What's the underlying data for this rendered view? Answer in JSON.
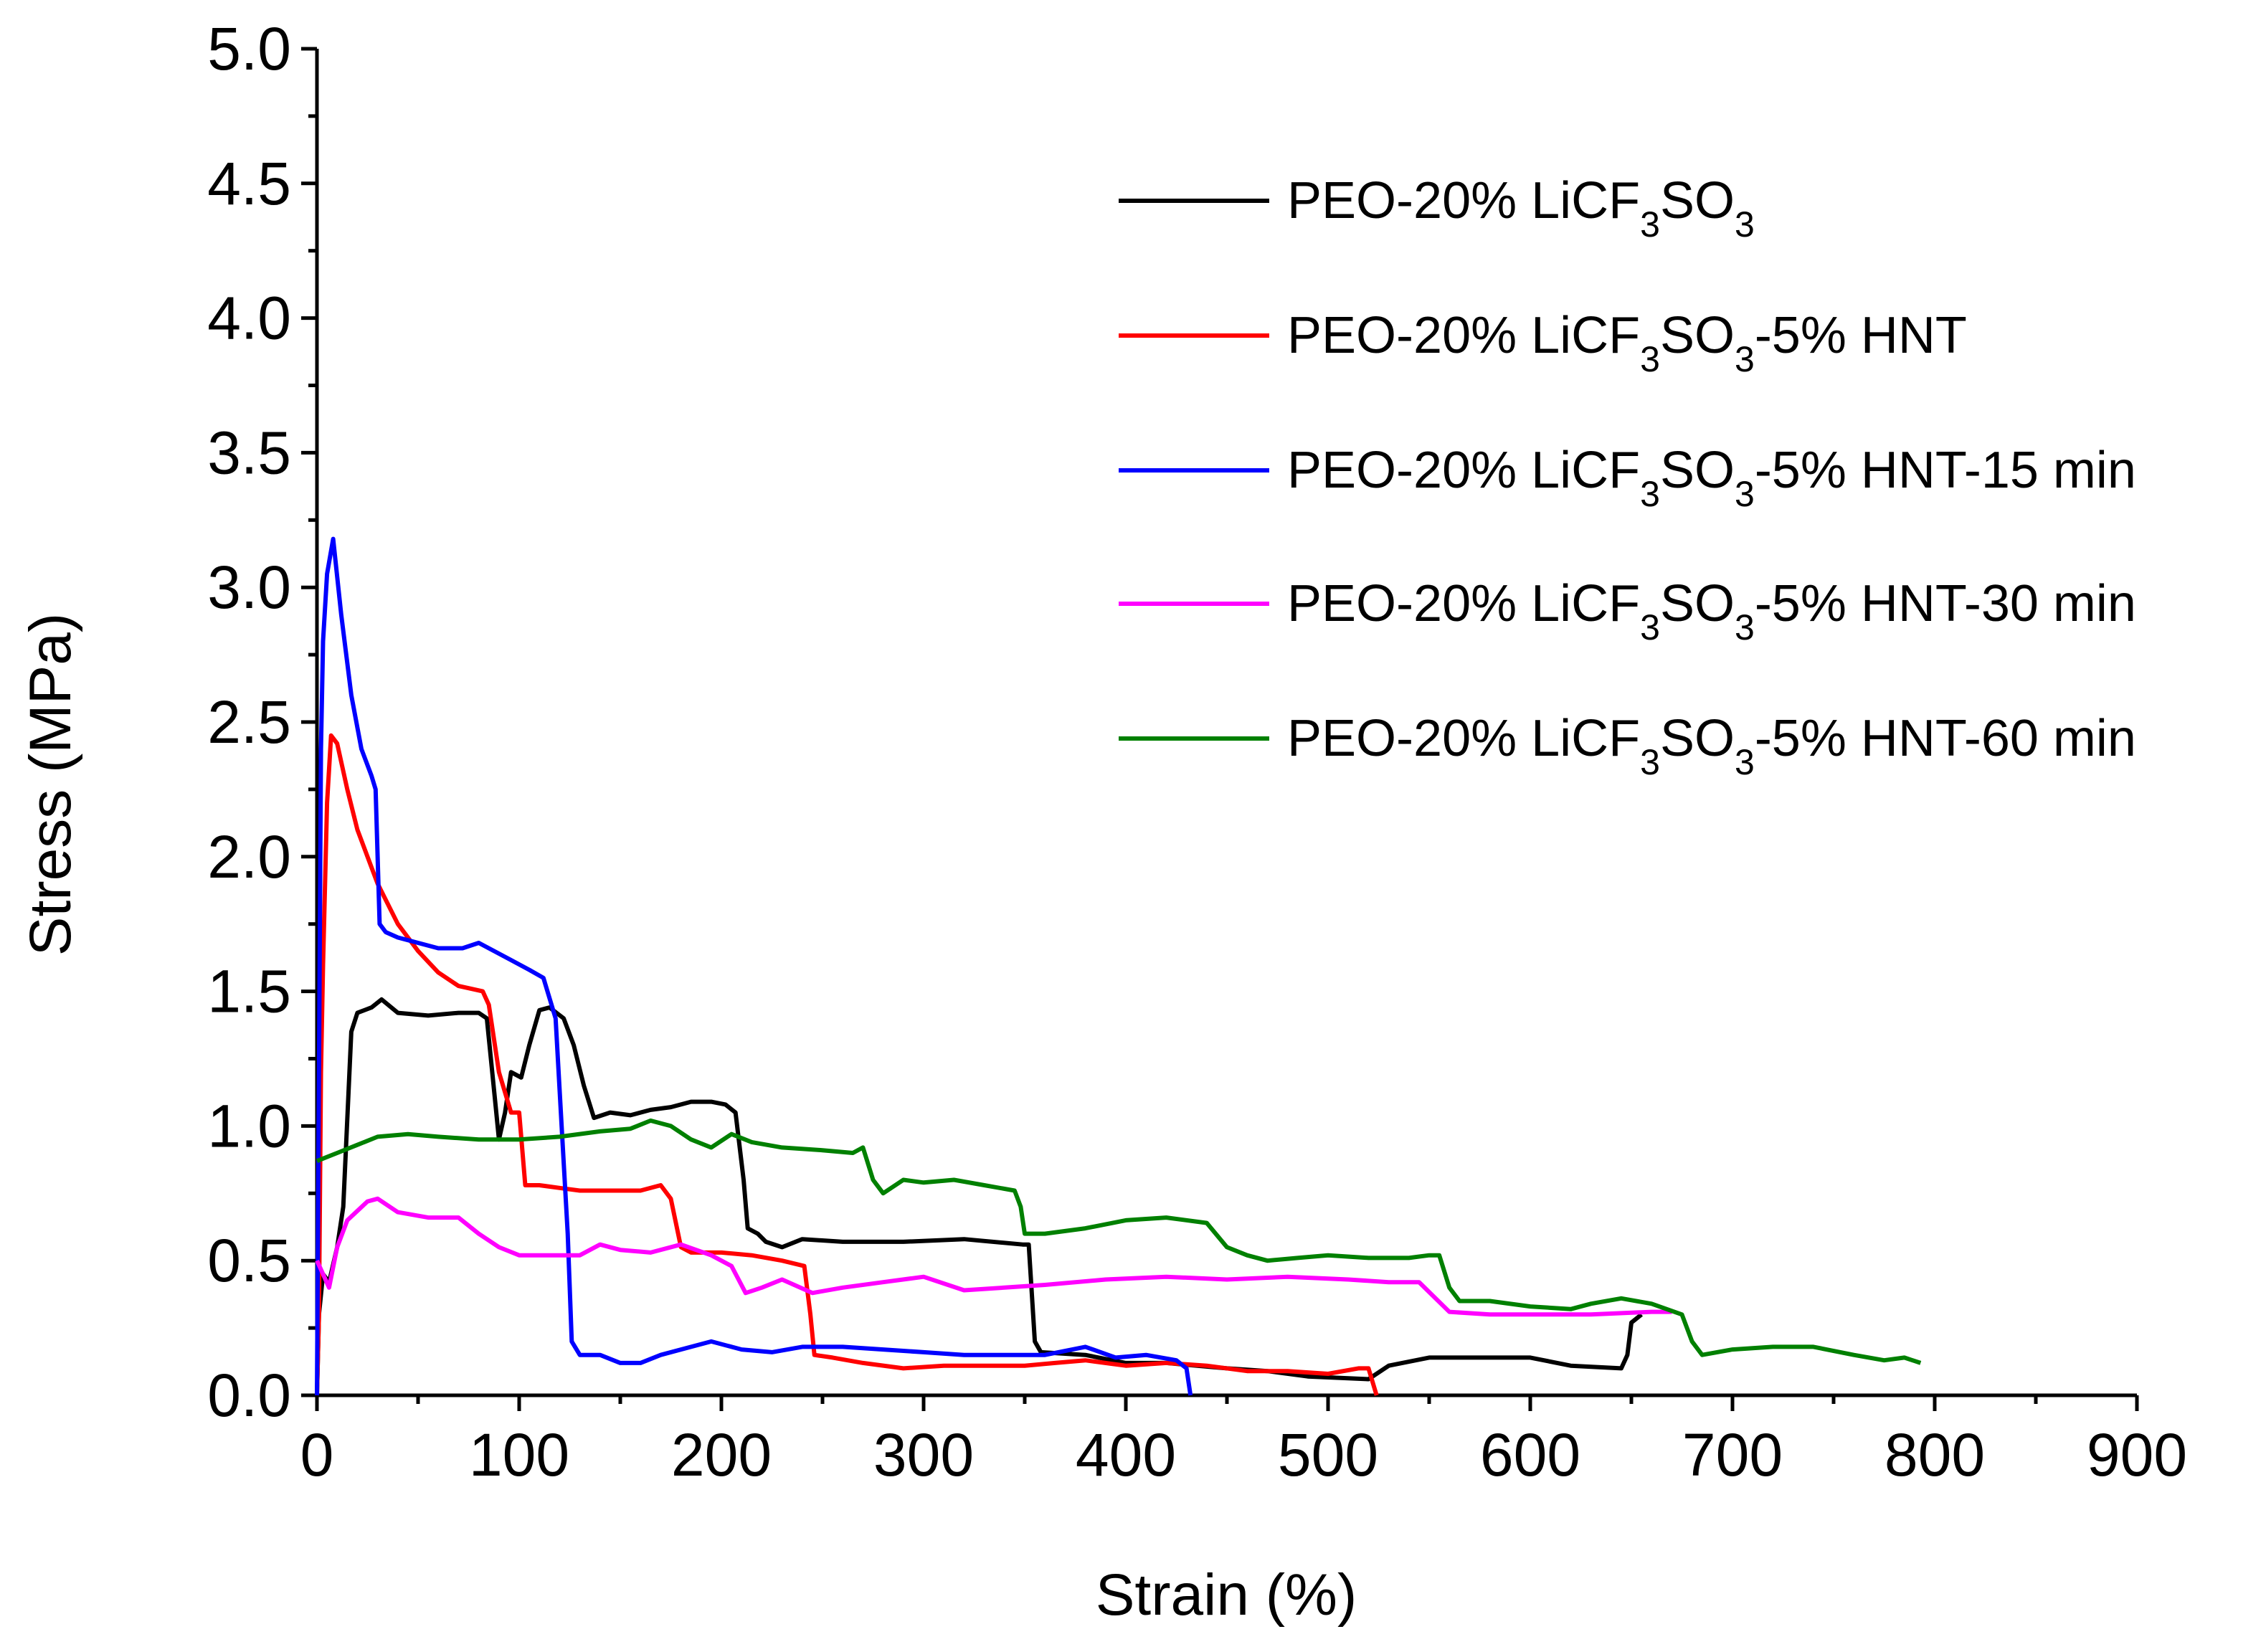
{
  "chart_data": {
    "type": "line",
    "title": "",
    "xlabel": "Strain (%)",
    "ylabel": "Stress (MPa)",
    "xlim": [
      0,
      900
    ],
    "ylim": [
      0,
      5.0
    ],
    "xticks": [
      "0",
      "100",
      "200",
      "300",
      "400",
      "500",
      "600",
      "700",
      "800",
      "900"
    ],
    "yticks": [
      "0.0",
      "0.5",
      "1.0",
      "1.5",
      "2.0",
      "2.5",
      "3.0",
      "3.5",
      "4.0",
      "4.5",
      "5.0"
    ],
    "grid": false,
    "legend_position": "top-right",
    "series": [
      {
        "name": "PEO-20% LiCF3SO3",
        "label_parts": [
          [
            "PEO-20% LiCF",
            "3",
            "SO",
            "3",
            ""
          ]
        ],
        "color": "#000000",
        "points": [
          [
            0,
            0
          ],
          [
            1,
            0.3
          ],
          [
            3,
            0.45
          ],
          [
            6,
            0.42
          ],
          [
            10,
            0.55
          ],
          [
            13,
            0.7
          ],
          [
            17,
            1.35
          ],
          [
            20,
            1.42
          ],
          [
            27,
            1.44
          ],
          [
            32,
            1.47
          ],
          [
            40,
            1.42
          ],
          [
            55,
            1.41
          ],
          [
            70,
            1.42
          ],
          [
            80,
            1.42
          ],
          [
            84,
            1.4
          ],
          [
            88,
            1.1
          ],
          [
            90,
            0.95
          ],
          [
            93,
            1.05
          ],
          [
            96,
            1.2
          ],
          [
            101,
            1.18
          ],
          [
            105,
            1.3
          ],
          [
            110,
            1.43
          ],
          [
            115,
            1.44
          ],
          [
            122,
            1.4
          ],
          [
            127,
            1.3
          ],
          [
            132,
            1.15
          ],
          [
            137,
            1.03
          ],
          [
            145,
            1.05
          ],
          [
            155,
            1.04
          ],
          [
            165,
            1.06
          ],
          [
            175,
            1.07
          ],
          [
            185,
            1.09
          ],
          [
            195,
            1.09
          ],
          [
            202,
            1.08
          ],
          [
            207,
            1.05
          ],
          [
            211,
            0.8
          ],
          [
            213,
            0.62
          ],
          [
            218,
            0.6
          ],
          [
            222,
            0.57
          ],
          [
            230,
            0.55
          ],
          [
            240,
            0.58
          ],
          [
            260,
            0.57
          ],
          [
            290,
            0.57
          ],
          [
            320,
            0.58
          ],
          [
            349,
            0.56
          ],
          [
            352,
            0.56
          ],
          [
            355,
            0.2
          ],
          [
            358,
            0.16
          ],
          [
            380,
            0.15
          ],
          [
            400,
            0.12
          ],
          [
            420,
            0.12
          ],
          [
            450,
            0.1
          ],
          [
            470,
            0.09
          ],
          [
            490,
            0.07
          ],
          [
            520,
            0.06
          ],
          [
            530,
            0.11
          ],
          [
            550,
            0.14
          ],
          [
            580,
            0.14
          ],
          [
            600,
            0.14
          ],
          [
            620,
            0.11
          ],
          [
            645,
            0.1
          ],
          [
            648,
            0.15
          ],
          [
            650,
            0.27
          ],
          [
            655,
            0.3
          ]
        ]
      },
      {
        "name": "PEO-20% LiCF3SO3-5% HNT",
        "label_parts": [
          [
            "PEO-20% LiCF",
            "3",
            "SO",
            "3",
            "-5% HNT"
          ]
        ],
        "color": "#ff0000",
        "points": [
          [
            0,
            0
          ],
          [
            1,
            0.3
          ],
          [
            2,
            1.2
          ],
          [
            3,
            1.6
          ],
          [
            5,
            2.2
          ],
          [
            7,
            2.45
          ],
          [
            10,
            2.42
          ],
          [
            15,
            2.25
          ],
          [
            20,
            2.1
          ],
          [
            30,
            1.9
          ],
          [
            40,
            1.75
          ],
          [
            50,
            1.65
          ],
          [
            60,
            1.57
          ],
          [
            70,
            1.52
          ],
          [
            82,
            1.5
          ],
          [
            85,
            1.45
          ],
          [
            90,
            1.2
          ],
          [
            96,
            1.05
          ],
          [
            100,
            1.05
          ],
          [
            103,
            0.78
          ],
          [
            110,
            0.78
          ],
          [
            120,
            0.77
          ],
          [
            130,
            0.76
          ],
          [
            145,
            0.76
          ],
          [
            160,
            0.76
          ],
          [
            170,
            0.78
          ],
          [
            175,
            0.73
          ],
          [
            180,
            0.55
          ],
          [
            185,
            0.53
          ],
          [
            200,
            0.53
          ],
          [
            215,
            0.52
          ],
          [
            230,
            0.5
          ],
          [
            241,
            0.48
          ],
          [
            244,
            0.3
          ],
          [
            246,
            0.15
          ],
          [
            255,
            0.14
          ],
          [
            270,
            0.12
          ],
          [
            290,
            0.1
          ],
          [
            310,
            0.11
          ],
          [
            330,
            0.11
          ],
          [
            350,
            0.11
          ],
          [
            365,
            0.12
          ],
          [
            380,
            0.13
          ],
          [
            400,
            0.11
          ],
          [
            420,
            0.12
          ],
          [
            440,
            0.11
          ],
          [
            460,
            0.09
          ],
          [
            480,
            0.09
          ],
          [
            500,
            0.08
          ],
          [
            515,
            0.1
          ],
          [
            520,
            0.1
          ],
          [
            524,
            0.0
          ]
        ]
      },
      {
        "name": "PEO-20% LiCF3SO3-5% HNT-15 min",
        "label_parts": [
          [
            "PEO-20% LiCF",
            "3",
            "SO",
            "3",
            "-5% HNT-15 min"
          ]
        ],
        "color": "#0000ff",
        "points": [
          [
            0,
            0
          ],
          [
            1,
            1.2
          ],
          [
            2,
            2.4
          ],
          [
            3,
            2.8
          ],
          [
            5,
            3.05
          ],
          [
            8,
            3.18
          ],
          [
            12,
            2.9
          ],
          [
            17,
            2.6
          ],
          [
            22,
            2.4
          ],
          [
            27,
            2.3
          ],
          [
            29,
            2.25
          ],
          [
            31,
            1.75
          ],
          [
            34,
            1.72
          ],
          [
            40,
            1.7
          ],
          [
            50,
            1.68
          ],
          [
            60,
            1.66
          ],
          [
            72,
            1.66
          ],
          [
            80,
            1.68
          ],
          [
            85,
            1.66
          ],
          [
            95,
            1.62
          ],
          [
            105,
            1.58
          ],
          [
            112,
            1.55
          ],
          [
            118,
            1.4
          ],
          [
            121,
            1.0
          ],
          [
            124,
            0.6
          ],
          [
            126,
            0.2
          ],
          [
            130,
            0.15
          ],
          [
            140,
            0.15
          ],
          [
            150,
            0.12
          ],
          [
            160,
            0.12
          ],
          [
            170,
            0.15
          ],
          [
            185,
            0.18
          ],
          [
            195,
            0.2
          ],
          [
            210,
            0.17
          ],
          [
            225,
            0.16
          ],
          [
            240,
            0.18
          ],
          [
            260,
            0.18
          ],
          [
            280,
            0.17
          ],
          [
            300,
            0.16
          ],
          [
            320,
            0.15
          ],
          [
            340,
            0.15
          ],
          [
            360,
            0.15
          ],
          [
            380,
            0.18
          ],
          [
            395,
            0.14
          ],
          [
            410,
            0.15
          ],
          [
            425,
            0.13
          ],
          [
            430,
            0.1
          ],
          [
            432,
            0.0
          ]
        ]
      },
      {
        "name": "PEO-20% LiCF3SO3-5% HNT-30 min",
        "label_parts": [
          [
            "PEO-20% LiCF",
            "3",
            "SO",
            "3",
            "-5% HNT-30 min"
          ]
        ],
        "color": "#ff00ff",
        "points": [
          [
            0,
            0.5
          ],
          [
            3,
            0.45
          ],
          [
            6,
            0.4
          ],
          [
            10,
            0.55
          ],
          [
            15,
            0.65
          ],
          [
            25,
            0.72
          ],
          [
            30,
            0.73
          ],
          [
            40,
            0.68
          ],
          [
            55,
            0.66
          ],
          [
            70,
            0.66
          ],
          [
            80,
            0.6
          ],
          [
            90,
            0.55
          ],
          [
            100,
            0.52
          ],
          [
            115,
            0.52
          ],
          [
            130,
            0.52
          ],
          [
            140,
            0.56
          ],
          [
            150,
            0.54
          ],
          [
            165,
            0.53
          ],
          [
            180,
            0.56
          ],
          [
            195,
            0.52
          ],
          [
            205,
            0.48
          ],
          [
            212,
            0.38
          ],
          [
            220,
            0.4
          ],
          [
            230,
            0.43
          ],
          [
            245,
            0.38
          ],
          [
            260,
            0.4
          ],
          [
            280,
            0.42
          ],
          [
            300,
            0.44
          ],
          [
            320,
            0.39
          ],
          [
            340,
            0.4
          ],
          [
            360,
            0.41
          ],
          [
            390,
            0.43
          ],
          [
            420,
            0.44
          ],
          [
            450,
            0.43
          ],
          [
            480,
            0.44
          ],
          [
            510,
            0.43
          ],
          [
            530,
            0.42
          ],
          [
            545,
            0.42
          ],
          [
            560,
            0.31
          ],
          [
            580,
            0.3
          ],
          [
            600,
            0.3
          ],
          [
            630,
            0.3
          ],
          [
            660,
            0.31
          ],
          [
            670,
            0.31
          ]
        ]
      },
      {
        "name": "PEO-20% LiCF3SO3-5% HNT-60 min",
        "label_parts": [
          [
            "PEO-20% LiCF",
            "3",
            "SO",
            "3",
            "-5% HNT-60 min"
          ]
        ],
        "color": "#008000",
        "points": [
          [
            0,
            0.87
          ],
          [
            10,
            0.9
          ],
          [
            20,
            0.93
          ],
          [
            30,
            0.96
          ],
          [
            45,
            0.97
          ],
          [
            60,
            0.96
          ],
          [
            80,
            0.95
          ],
          [
            100,
            0.95
          ],
          [
            120,
            0.96
          ],
          [
            140,
            0.98
          ],
          [
            155,
            0.99
          ],
          [
            165,
            1.02
          ],
          [
            175,
            1.0
          ],
          [
            185,
            0.95
          ],
          [
            195,
            0.92
          ],
          [
            205,
            0.97
          ],
          [
            215,
            0.94
          ],
          [
            230,
            0.92
          ],
          [
            250,
            0.91
          ],
          [
            265,
            0.9
          ],
          [
            270,
            0.92
          ],
          [
            275,
            0.8
          ],
          [
            280,
            0.75
          ],
          [
            290,
            0.8
          ],
          [
            300,
            0.79
          ],
          [
            315,
            0.8
          ],
          [
            330,
            0.78
          ],
          [
            345,
            0.76
          ],
          [
            348,
            0.7
          ],
          [
            350,
            0.6
          ],
          [
            360,
            0.6
          ],
          [
            380,
            0.62
          ],
          [
            400,
            0.65
          ],
          [
            420,
            0.66
          ],
          [
            440,
            0.64
          ],
          [
            450,
            0.55
          ],
          [
            460,
            0.52
          ],
          [
            470,
            0.5
          ],
          [
            485,
            0.51
          ],
          [
            500,
            0.52
          ],
          [
            520,
            0.51
          ],
          [
            540,
            0.51
          ],
          [
            550,
            0.52
          ],
          [
            555,
            0.52
          ],
          [
            560,
            0.4
          ],
          [
            565,
            0.35
          ],
          [
            580,
            0.35
          ],
          [
            600,
            0.33
          ],
          [
            620,
            0.32
          ],
          [
            630,
            0.34
          ],
          [
            645,
            0.36
          ],
          [
            660,
            0.34
          ],
          [
            675,
            0.3
          ],
          [
            680,
            0.2
          ],
          [
            685,
            0.15
          ],
          [
            700,
            0.17
          ],
          [
            720,
            0.18
          ],
          [
            740,
            0.18
          ],
          [
            760,
            0.15
          ],
          [
            775,
            0.13
          ],
          [
            785,
            0.14
          ],
          [
            793,
            0.12
          ]
        ]
      }
    ]
  }
}
